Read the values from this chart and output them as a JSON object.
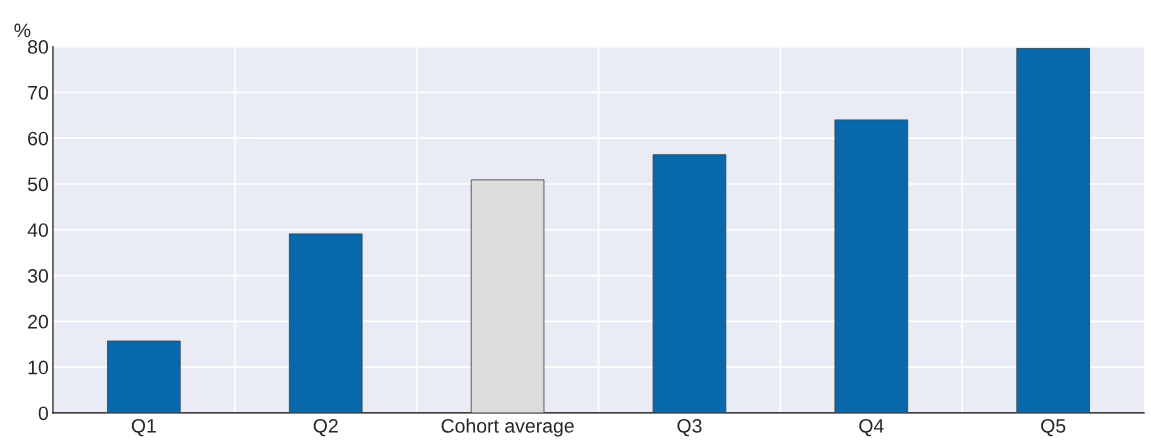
{
  "chart_data": {
    "type": "bar",
    "ylabel": "%",
    "categories": [
      "Q1",
      "Q2",
      "Cohort average",
      "Q3",
      "Q4",
      "Q5"
    ],
    "values": [
      15.7,
      39.1,
      50.9,
      56.4,
      64.0,
      79.6
    ],
    "colors": [
      "#0868ac",
      "#0868ac",
      "#dcdcdc",
      "#0868ac",
      "#0868ac",
      "#0868ac"
    ],
    "ylim": [
      0,
      80
    ],
    "yticks": [
      0,
      10,
      20,
      30,
      40,
      50,
      60,
      70,
      80
    ],
    "grid": true
  }
}
